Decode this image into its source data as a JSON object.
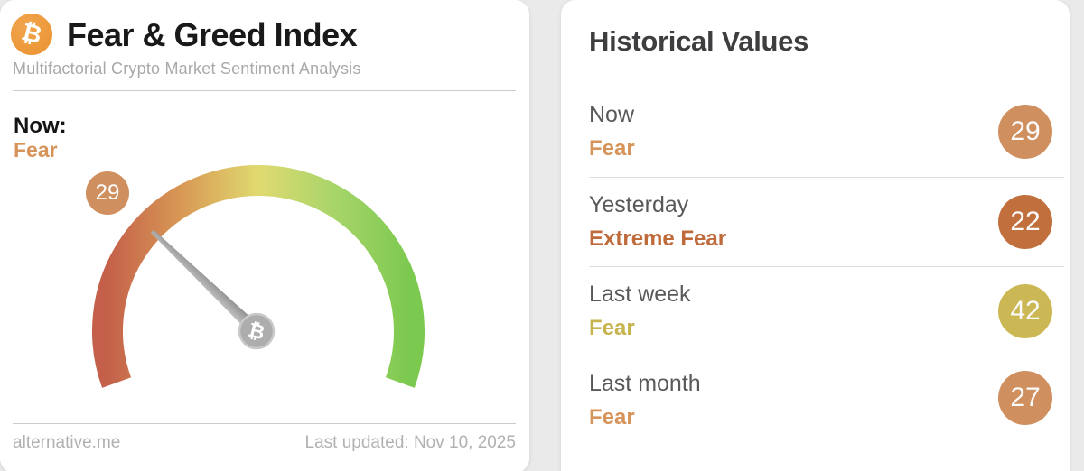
{
  "left_card": {
    "logo_symbol": "₿",
    "title": "Fear & Greed Index",
    "subtitle": "Multifactorial Crypto Market Sentiment Analysis",
    "now_label": "Now:",
    "now_classification": "Fear",
    "now_classification_color": "#d6945a",
    "gauge_badge_value": "29",
    "gauge_badge_color": "#d08f5e",
    "footer": {
      "source": "alternative.me",
      "last_updated": "Last updated: Nov 10, 2025"
    }
  },
  "right_card": {
    "title": "Historical Values",
    "rows": [
      {
        "label": "Now",
        "classification": "Fear",
        "value": 29,
        "circle_color": "#d08f5e",
        "classification_color": "#d6945a"
      },
      {
        "label": "Yesterday",
        "classification": "Extreme Fear",
        "value": 22,
        "circle_color": "#c16f3d",
        "classification_color": "#bf6a3a"
      },
      {
        "label": "Last week",
        "classification": "Fear",
        "value": 42,
        "circle_color": "#cbb854",
        "classification_color": "#c6b44e"
      },
      {
        "label": "Last month",
        "classification": "Fear",
        "value": 27,
        "circle_color": "#d08f5e",
        "classification_color": "#d6945a"
      }
    ]
  },
  "chart_data": {
    "type": "gauge",
    "title": "Fear & Greed Index",
    "value": 29,
    "classification": "Fear",
    "range": [
      0,
      100
    ],
    "gauge_span_degrees": 220,
    "scale_colors": [
      "#c4604a",
      "#d89a55",
      "#e0da70",
      "#a8d56a",
      "#7cc94f"
    ],
    "historical": [
      {
        "label": "Now",
        "value": 29,
        "classification": "Fear"
      },
      {
        "label": "Yesterday",
        "value": 22,
        "classification": "Extreme Fear"
      },
      {
        "label": "Last week",
        "value": 42,
        "classification": "Fear"
      },
      {
        "label": "Last month",
        "value": 27,
        "classification": "Fear"
      }
    ],
    "source": "alternative.me",
    "last_updated": "Nov 10, 2025"
  }
}
